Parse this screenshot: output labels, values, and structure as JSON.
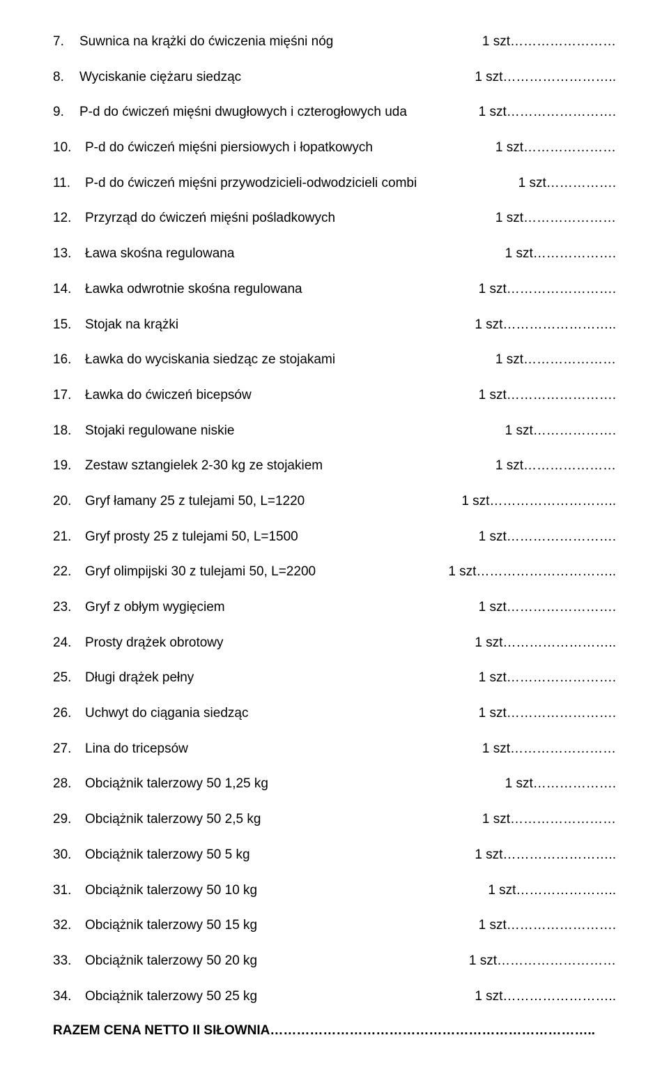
{
  "items": [
    {
      "num": "7.",
      "label": "Suwnica na krążki do ćwiczenia mięśni nóg",
      "qty": "1 szt……………………"
    },
    {
      "num": "8.",
      "label": "Wyciskanie ciężaru siedząc",
      "qty": "1 szt…………………….."
    },
    {
      "num": "9.",
      "label": "P-d do ćwiczeń mięśni dwugłowych i czterogłowych uda",
      "qty": "1 szt……………………."
    },
    {
      "num": "10.",
      "label": "P-d do ćwiczeń mięśni piersiowych i łopatkowych",
      "qty": "1 szt…………………"
    },
    {
      "num": "11.",
      "label": "P-d do ćwiczeń mięśni przywodzicieli-odwodzicieli combi",
      "qty": "1 szt……………."
    },
    {
      "num": "12.",
      "label": "Przyrząd do ćwiczeń mięśni pośladkowych",
      "qty": "1 szt…………………"
    },
    {
      "num": "13.",
      "label": "Ława skośna regulowana",
      "qty": "1 szt………………."
    },
    {
      "num": "14.",
      "label": "Ławka odwrotnie skośna regulowana",
      "qty": "1 szt……………………."
    },
    {
      "num": "15.",
      "label": "Stojak na krążki",
      "qty": "1 szt…………………….."
    },
    {
      "num": "16.",
      "label": "Ławka do wyciskania siedząc ze stojakami",
      "qty": "1 szt…………………"
    },
    {
      "num": "17.",
      "label": "Ławka do ćwiczeń bicepsów",
      "qty": "1 szt……………………."
    },
    {
      "num": "18.",
      "label": "Stojaki regulowane niskie",
      "qty": "1 szt………………."
    },
    {
      "num": "19.",
      "label": "Zestaw sztangielek 2-30 kg ze stojakiem",
      "qty": "1 szt…………………"
    },
    {
      "num": "20.",
      "label": "Gryf łamany  25 z tulejami  50, L=1220",
      "qty": "1 szt……………………….."
    },
    {
      "num": "21.",
      "label": "Gryf prosty  25 z tulejami  50, L=1500",
      "qty": "1 szt……………………."
    },
    {
      "num": "22.",
      "label": "Gryf olimpijski  30 z tulejami  50, L=2200",
      "qty": "1 szt………………………….."
    },
    {
      "num": "23.",
      "label": "Gryf z obłym wygięciem",
      "qty": "1 szt……………………."
    },
    {
      "num": "24.",
      "label": "Prosty drążek obrotowy",
      "qty": "1 szt…………………….."
    },
    {
      "num": "25.",
      "label": "Długi drążek pełny",
      "qty": "1 szt……………………."
    },
    {
      "num": "26.",
      "label": "Uchwyt do ciągania siedząc",
      "qty": "1 szt……………………."
    },
    {
      "num": "27.",
      "label": "Lina do tricepsów",
      "qty": "1 szt……………………"
    },
    {
      "num": "28.",
      "label": "Obciążnik talerzowy  50  1,25 kg",
      "qty": "1 szt………………."
    },
    {
      "num": "29.",
      "label": "Obciążnik talerzowy  50  2,5 kg",
      "qty": "1 szt……………………"
    },
    {
      "num": "30.",
      "label": "Obciążnik talerzowy  50  5 kg",
      "qty": "1 szt…………………….."
    },
    {
      "num": "31.",
      "label": "Obciążnik talerzowy  50  10 kg",
      "qty": "1 szt………………….."
    },
    {
      "num": "32.",
      "label": "Obciążnik talerzowy  50  15 kg",
      "qty": "1 szt……………………."
    },
    {
      "num": "33.",
      "label": "Obciążnik talerzowy  50  20 kg",
      "qty": "1 szt………………………"
    },
    {
      "num": "34.",
      "label": "Obciążnik talerzowy  50  25 kg",
      "qty": "1 szt…………………….."
    }
  ],
  "total": "RAZEM CENA NETTO    II SIŁOWNIA……………………………………………………………….."
}
